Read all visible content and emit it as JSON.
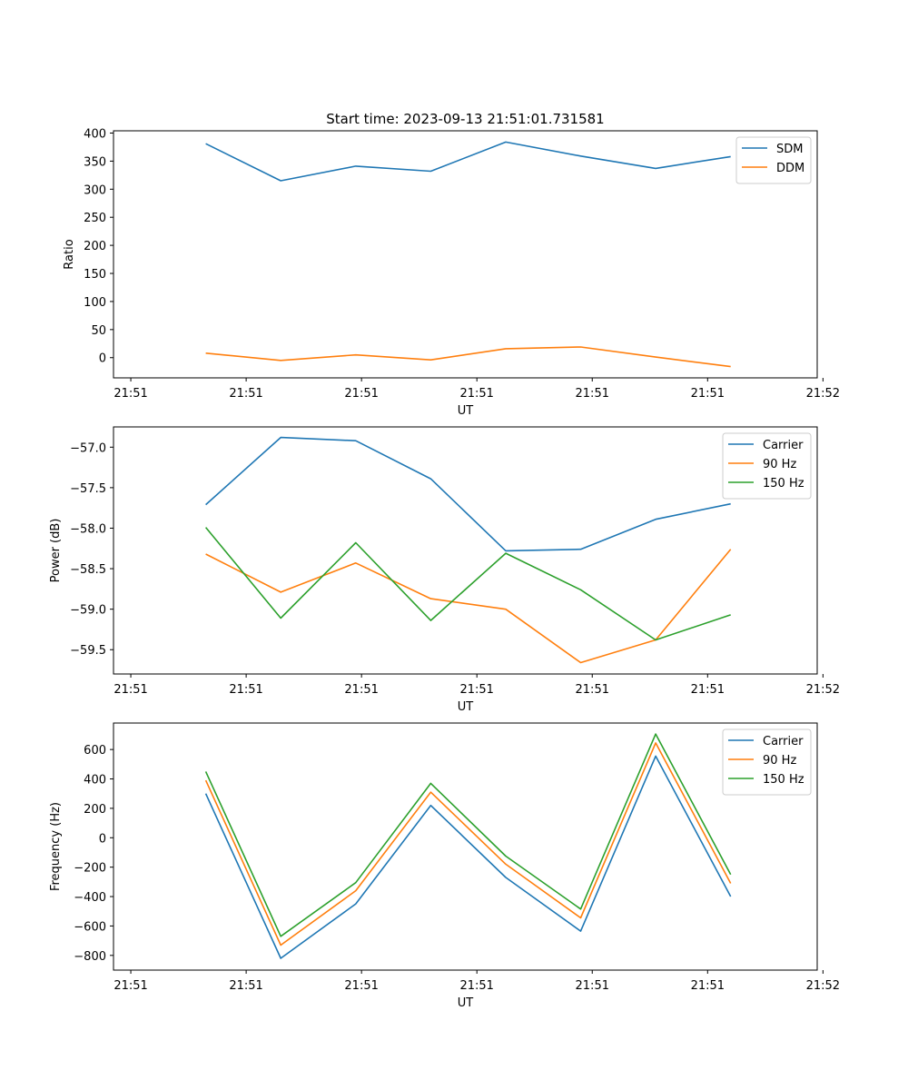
{
  "chart_data": [
    {
      "type": "line",
      "title": "Start time: 2023-09-13 21:51:01.731581",
      "xlabel": "UT",
      "ylabel": "Ratio",
      "x": [
        0.65,
        1.3,
        1.95,
        2.6,
        3.25,
        3.9,
        4.55,
        5.2
      ],
      "xlim": [
        -0.15,
        5.95
      ],
      "xticks": [
        0,
        1,
        2,
        3,
        4,
        5,
        6
      ],
      "xtick_labels": [
        "21:51",
        "21:51",
        "21:51",
        "21:51",
        "21:51",
        "21:51",
        "21:52"
      ],
      "ylim": [
        -36,
        404
      ],
      "yticks": [
        0,
        50,
        100,
        150,
        200,
        250,
        300,
        350,
        400
      ],
      "yticks_labels": [
        "0",
        "50",
        "100",
        "150",
        "200",
        "250",
        "300",
        "350",
        "400"
      ],
      "legend_position": "top-right",
      "series": [
        {
          "name": "SDM",
          "color": "#1f77b4",
          "values": [
            381,
            315,
            341,
            332,
            384,
            359,
            337,
            358
          ]
        },
        {
          "name": "DDM",
          "color": "#ff7f0e",
          "values": [
            8,
            -5,
            5,
            -4,
            16,
            19,
            1,
            -16
          ]
        }
      ]
    },
    {
      "type": "line",
      "title": "",
      "xlabel": "UT",
      "ylabel": "Power (dB)",
      "x": [
        0.65,
        1.3,
        1.95,
        2.6,
        3.25,
        3.9,
        4.55,
        5.2
      ],
      "xlim": [
        -0.15,
        5.95
      ],
      "xticks": [
        0,
        1,
        2,
        3,
        4,
        5,
        6
      ],
      "xtick_labels": [
        "21:51",
        "21:51",
        "21:51",
        "21:51",
        "21:51",
        "21:51",
        "21:52"
      ],
      "ylim": [
        -59.8,
        -56.75
      ],
      "yticks": [
        -59.5,
        -59.0,
        -58.5,
        -58.0,
        -57.5,
        -57.0
      ],
      "yticks_labels": [
        "−59.5",
        "−59.0",
        "−58.5",
        "−58.0",
        "−57.5",
        "−57.0"
      ],
      "legend_position": "top-right",
      "series": [
        {
          "name": "Carrier",
          "color": "#1f77b4",
          "values": [
            -57.71,
            -56.88,
            -56.92,
            -57.39,
            -58.28,
            -58.26,
            -57.89,
            -57.7
          ]
        },
        {
          "name": "90 Hz",
          "color": "#ff7f0e",
          "values": [
            -58.32,
            -58.79,
            -58.43,
            -58.87,
            -59.0,
            -59.66,
            -59.38,
            -58.26
          ]
        },
        {
          "name": "150 Hz",
          "color": "#2ca02c",
          "values": [
            -57.99,
            -59.11,
            -58.18,
            -59.14,
            -58.31,
            -58.76,
            -59.38,
            -59.07
          ]
        }
      ]
    },
    {
      "type": "line",
      "title": "",
      "xlabel": "UT",
      "ylabel": "Frequency (Hz)",
      "x": [
        0.65,
        1.3,
        1.95,
        2.6,
        3.25,
        3.9,
        4.55,
        5.2
      ],
      "xlim": [
        -0.15,
        5.95
      ],
      "xticks": [
        0,
        1,
        2,
        3,
        4,
        5,
        6
      ],
      "xtick_labels": [
        "21:51",
        "21:51",
        "21:51",
        "21:51",
        "21:51",
        "21:51",
        "21:52"
      ],
      "ylim": [
        -900,
        780
      ],
      "yticks": [
        -800,
        -600,
        -400,
        -200,
        0,
        200,
        400,
        600
      ],
      "yticks_labels": [
        "−800",
        "−600",
        "−400",
        "−200",
        "0",
        "200",
        "400",
        "600"
      ],
      "legend_position": "top-right",
      "series": [
        {
          "name": "Carrier",
          "color": "#1f77b4",
          "values": [
            300,
            -820,
            -450,
            220,
            -270,
            -635,
            555,
            -400
          ]
        },
        {
          "name": "90 Hz",
          "color": "#ff7f0e",
          "values": [
            390,
            -730,
            -360,
            310,
            -180,
            -545,
            645,
            -310
          ]
        },
        {
          "name": "150 Hz",
          "color": "#2ca02c",
          "values": [
            450,
            -670,
            -305,
            370,
            -125,
            -485,
            705,
            -250
          ]
        }
      ]
    }
  ]
}
